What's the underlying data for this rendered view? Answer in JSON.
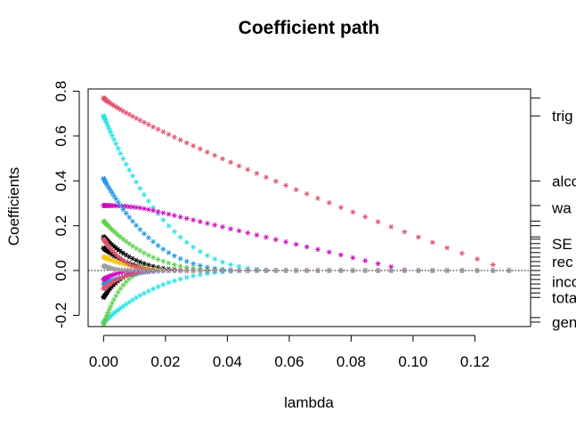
{
  "chart_data": {
    "type": "scatter",
    "title": "Coefficient path",
    "xlabel": "lambda",
    "ylabel": "Coefficients",
    "xlim": [
      -0.005,
      0.138
    ],
    "ylim": [
      -0.25,
      0.81
    ],
    "x_ticks": [
      "0.00",
      "0.02",
      "0.04",
      "0.06",
      "0.08",
      "0.10",
      "0.12"
    ],
    "y_ticks": [
      "-0.2",
      "0.0",
      "0.2",
      "0.4",
      "0.6",
      "0.8"
    ],
    "marker": "*",
    "zero_line": true,
    "right_labels": [
      {
        "label": "trig",
        "value": 0.69
      },
      {
        "label": "alco",
        "value": 0.4
      },
      {
        "label": "wa",
        "value": 0.28
      },
      {
        "label": "SE",
        "value": 0.12
      },
      {
        "label": "rec",
        "value": 0.04
      },
      {
        "label": "inco",
        "value": -0.05
      },
      {
        "label": "tota",
        "value": -0.12
      },
      {
        "label": "gen",
        "value": -0.23
      }
    ],
    "right_ticks": [
      0.77,
      0.69,
      0.4,
      0.29,
      0.22,
      0.2,
      0.15,
      0.14,
      0.12,
      0.1,
      0.08,
      0.06,
      0.04,
      0.02,
      0.0,
      -0.02,
      -0.04,
      -0.06,
      -0.08,
      -0.1,
      -0.12,
      -0.21,
      -0.23
    ],
    "series": [
      {
        "color": "#DF536B",
        "lambda_max": 0.131,
        "y0": 0.77,
        "y1": 0.0,
        "shape": "linear"
      },
      {
        "color": "#28E2E5",
        "lambda_max": 0.062,
        "y0": 0.69,
        "y1": 0.0,
        "shape": "decay"
      },
      {
        "color": "#CD0BBC",
        "lambda_max": 0.098,
        "y0": 0.29,
        "y1": 0.0,
        "shape": "hump",
        "peak": 0.32
      },
      {
        "color": "#2297E6",
        "lambda_max": 0.05,
        "y0": 0.41,
        "y1": 0.0,
        "shape": "decay"
      },
      {
        "color": "#61D04F",
        "lambda_max": 0.045,
        "y0": 0.22,
        "y1": 0.0,
        "shape": "decay"
      },
      {
        "color": "#000000",
        "lambda_max": 0.032,
        "y0": 0.15,
        "y1": 0.0,
        "shape": "decay"
      },
      {
        "color": "#000000",
        "lambda_max": 0.026,
        "y0": 0.1,
        "y1": 0.0,
        "shape": "decay"
      },
      {
        "color": "#F5C710",
        "lambda_max": 0.03,
        "y0": 0.06,
        "y1": 0.0,
        "shape": "decay"
      },
      {
        "color": "#DF536B",
        "lambda_max": 0.02,
        "y0": 0.14,
        "y1": 0.0,
        "shape": "decay"
      },
      {
        "color": "#28E2E5",
        "lambda_max": 0.055,
        "y0": -0.23,
        "y1": 0.0,
        "shape": "decay"
      },
      {
        "color": "#61D04F",
        "lambda_max": 0.018,
        "y0": -0.24,
        "y1": 0.0,
        "shape": "decay"
      },
      {
        "color": "#000000",
        "lambda_max": 0.017,
        "y0": -0.12,
        "y1": 0.0,
        "shape": "decay"
      },
      {
        "color": "#2297E6",
        "lambda_max": 0.028,
        "y0": -0.06,
        "y1": 0.0,
        "shape": "decay"
      },
      {
        "color": "#DF536B",
        "lambda_max": 0.022,
        "y0": -0.08,
        "y1": 0.0,
        "shape": "decay"
      },
      {
        "color": "#CD0BBC",
        "lambda_max": 0.014,
        "y0": -0.04,
        "y1": 0.0,
        "shape": "decay"
      },
      {
        "color": "#9E9E9E",
        "lambda_max": 0.012,
        "y0": 0.02,
        "y1": 0.0,
        "shape": "decay"
      }
    ]
  }
}
